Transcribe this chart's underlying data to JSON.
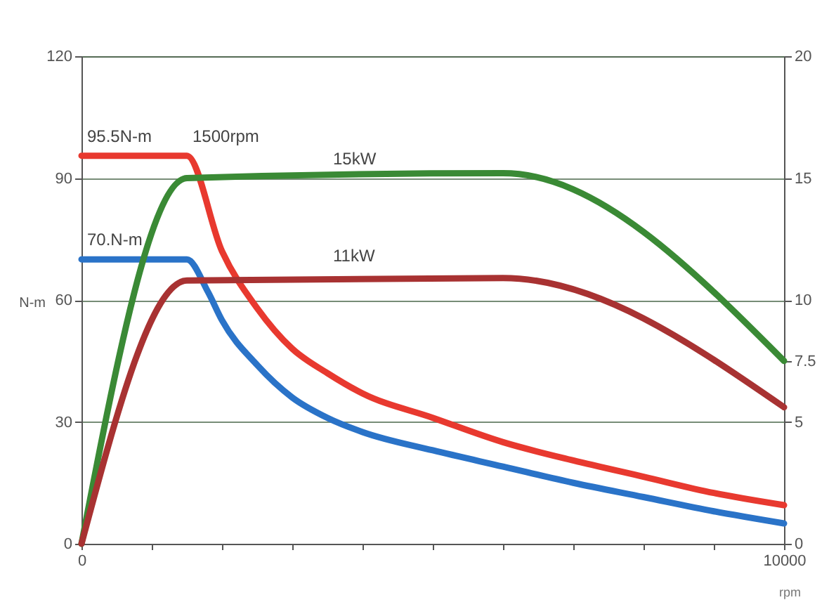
{
  "chart_data": {
    "type": "line",
    "xlabel": "rpm",
    "ylabel": "N-m",
    "xlim": [
      0,
      10000
    ],
    "xticks": [
      0,
      {
        "value": 1000,
        "label": null
      },
      {
        "value": 2000,
        "label": null
      },
      {
        "value": 3000,
        "label": null
      },
      {
        "value": 4000,
        "label": null
      },
      {
        "value": 5000,
        "label": null
      },
      {
        "value": 6000,
        "label": null
      },
      {
        "value": 7000,
        "label": null
      },
      {
        "value": 8000,
        "label": null
      },
      {
        "value": 9000,
        "label": null
      },
      10000
    ],
    "ylim": [
      0,
      120
    ],
    "yticks": [
      0,
      30,
      60,
      90,
      120
    ],
    "y2lim": [
      0,
      20
    ],
    "y2ticks": [
      0,
      5,
      7.5,
      10,
      15,
      20
    ],
    "grid": "y",
    "line_style": "solid",
    "series": [
      {
        "color": "#e8392f",
        "x": [
          0,
          1500,
          2000,
          2500,
          3000,
          3500,
          4000,
          5000,
          6000,
          7000,
          8000,
          9000,
          10000
        ],
        "values": [
          95.5,
          95.5,
          72,
          58,
          48,
          42,
          37,
          31,
          25,
          20.5,
          16.5,
          12.5,
          9.5
        ]
      },
      {
        "color": "#2a73c8",
        "x": [
          0,
          1500,
          1800,
          2000,
          2500,
          3000,
          3500,
          4000,
          5000,
          6000,
          7000,
          8000,
          9000,
          10000
        ],
        "values": [
          70,
          70,
          62,
          55,
          44,
          36,
          31,
          27.5,
          23,
          19,
          15,
          11.5,
          8,
          5
        ]
      },
      {
        "color": "#3a8a35",
        "axis": "y2",
        "x": [
          0,
          1500,
          6000,
          10000
        ],
        "values": [
          0,
          15,
          15.2,
          7.5
        ]
      },
      {
        "color": "#a83232",
        "axis": "y2",
        "x": [
          0,
          1500,
          6000,
          10000
        ],
        "values": [
          0,
          10.8,
          10.9,
          5.6
        ]
      }
    ],
    "annotations": [
      {
        "text": "95.5N-m",
        "x": 0,
        "y": 95.5
      },
      {
        "text": "1500rpm",
        "x": 1500,
        "y": 95.5
      },
      {
        "text": "15kW",
        "x": 3500,
        "y": 90
      },
      {
        "text": "11kW",
        "x": 3500,
        "y": 66
      },
      {
        "text": "70.N-m",
        "x": 0,
        "y": 70
      }
    ]
  }
}
